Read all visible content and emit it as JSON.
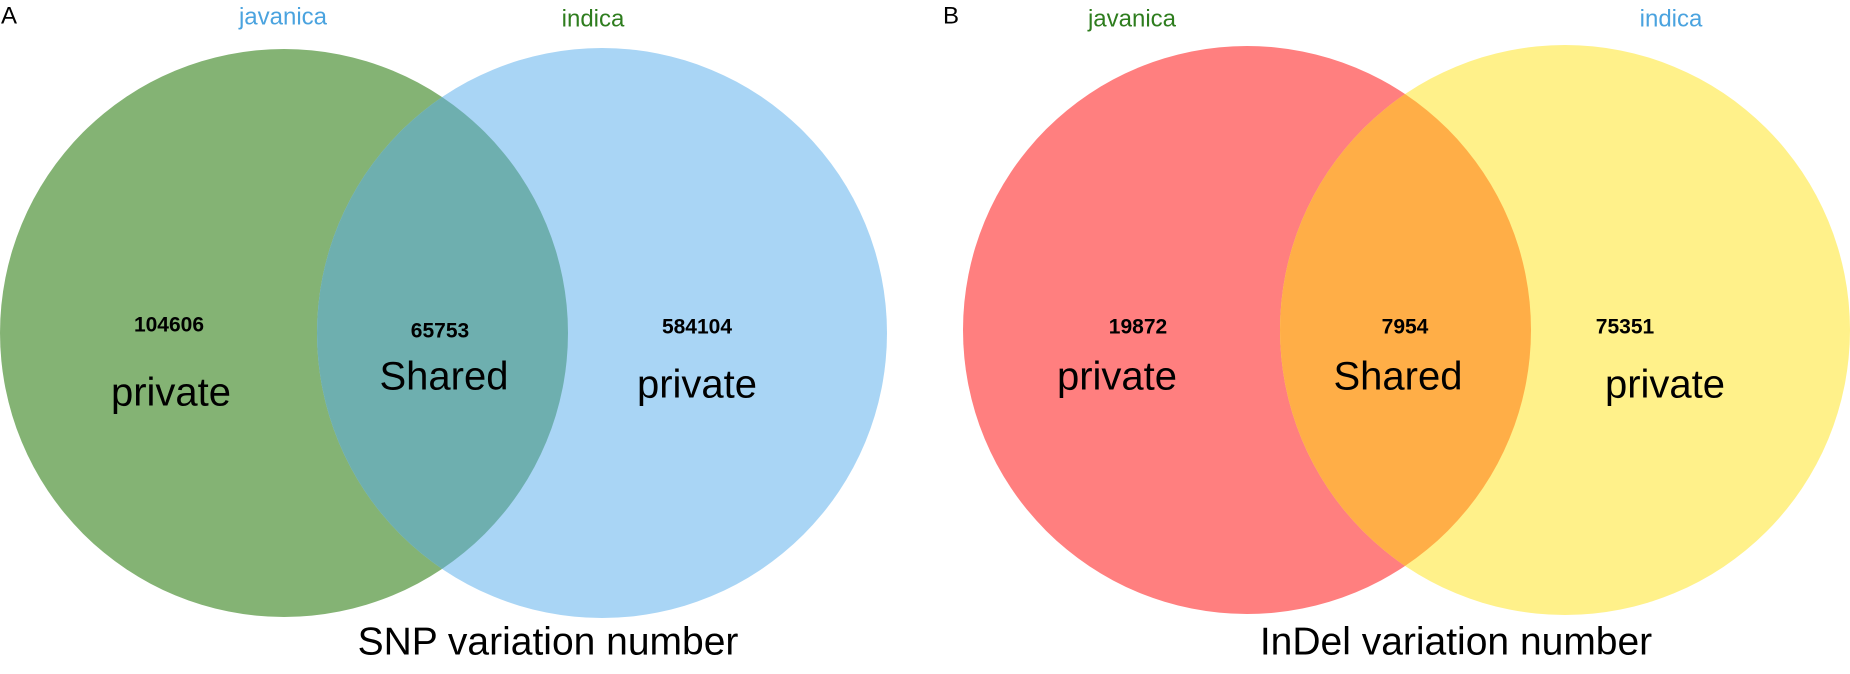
{
  "chart_data": [
    {
      "type": "venn",
      "panel": "A",
      "title": "SNP variation number",
      "sets": [
        {
          "name": "javanica",
          "color": "#84b374",
          "label_color": "#4aa3df"
        },
        {
          "name": "indica",
          "color": "#a9d5f5",
          "label_color": "#2e7d1e"
        }
      ],
      "overlap_color": "#6eafaf",
      "values": [
        104606,
        65753,
        584104
      ],
      "region_labels": [
        "private",
        "Shared",
        "private"
      ]
    },
    {
      "type": "venn",
      "panel": "B",
      "title": "InDel variation number",
      "sets": [
        {
          "name": "javanica",
          "color": "#ff7f7f",
          "label_color": "#2e7d1e"
        },
        {
          "name": "indica",
          "color": "#fff18a",
          "label_color": "#4aa3df"
        }
      ],
      "overlap_color": "#ffae47",
      "values": [
        19872,
        7954,
        75351
      ],
      "region_labels": [
        "private",
        "Shared",
        "private"
      ]
    }
  ]
}
